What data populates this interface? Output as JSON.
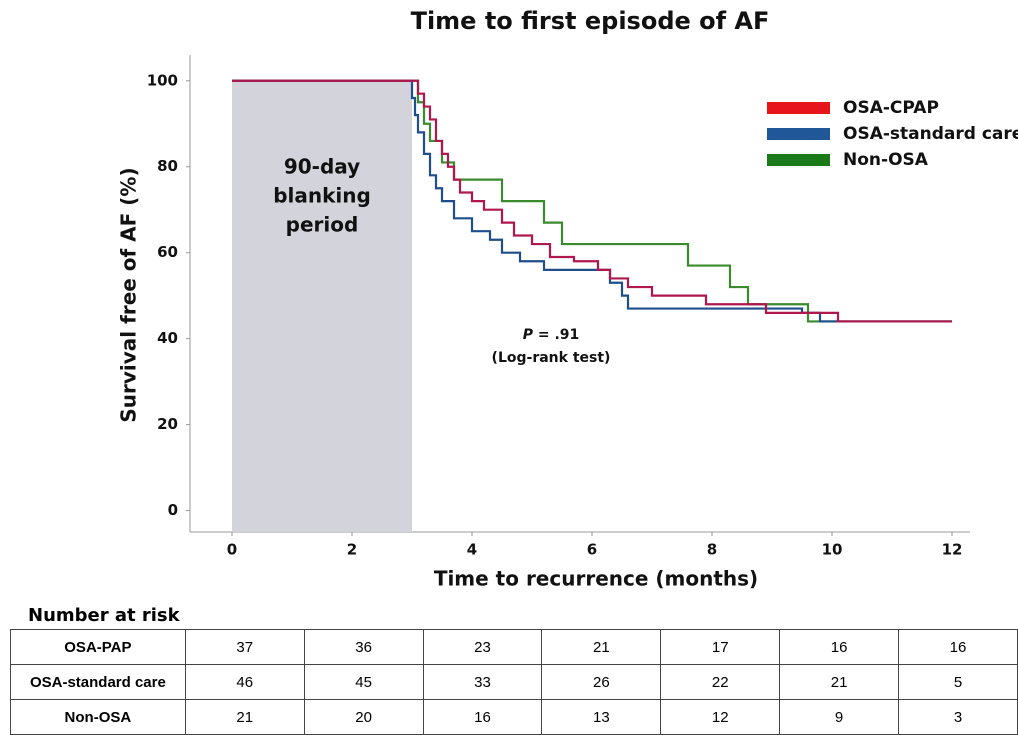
{
  "chart_data": {
    "type": "step",
    "title": "Time to first episode of AF",
    "x_label": "Time to recurrence (months)",
    "y_label": "Survival free of AF (%)",
    "xlim": [
      -0.7,
      12.3
    ],
    "ylim": [
      -5,
      106
    ],
    "xticks": [
      0,
      2,
      4,
      6,
      8,
      10,
      12
    ],
    "yticks": [
      0,
      20,
      40,
      60,
      80,
      100
    ],
    "legend": "upper right",
    "shaded_region": {
      "span": [
        0,
        3
      ],
      "label_lines": [
        "90-day",
        "blanking",
        "period"
      ],
      "color": "#d3d3db"
    },
    "annotation": {
      "symbol": "P",
      "text": "= .91",
      "test": "(Log-rank test)"
    },
    "series": [
      {
        "name": "OSA-CPAP",
        "color": "#b0174f",
        "legend_color": "#e8141c",
        "x": [
          0,
          3.05,
          3.1,
          3.2,
          3.3,
          3.4,
          3.5,
          3.6,
          3.7,
          3.8,
          4.0,
          4.2,
          4.5,
          4.7,
          5.0,
          5.3,
          5.7,
          6.1,
          6.3,
          6.6,
          7.0,
          7.9,
          8.9,
          10.1,
          12
        ],
        "values": [
          100,
          100,
          97,
          94,
          91,
          86,
          83,
          80,
          77,
          74,
          72,
          70,
          67,
          64,
          62,
          59,
          58,
          56,
          54,
          52,
          50,
          48,
          46,
          44,
          44
        ]
      },
      {
        "name": "OSA-standard care",
        "color": "#1f4e8c",
        "legend_color": "#1f5799",
        "x": [
          0,
          3.0,
          3.05,
          3.1,
          3.2,
          3.3,
          3.4,
          3.5,
          3.7,
          4.0,
          4.3,
          4.5,
          4.8,
          5.2,
          6.3,
          6.5,
          6.6,
          9.5,
          9.8,
          12
        ],
        "values": [
          100,
          96,
          92,
          88,
          83,
          78,
          75,
          72,
          68,
          65,
          63,
          60,
          58,
          56,
          53,
          50,
          47,
          46,
          44,
          44
        ]
      },
      {
        "name": "Non-OSA",
        "color": "#3a8a2e",
        "legend_color": "#1a7a1a",
        "x": [
          0,
          3.1,
          3.2,
          3.3,
          3.5,
          3.7,
          4.5,
          5.2,
          5.5,
          7.6,
          8.3,
          8.6,
          9.6,
          12
        ],
        "values": [
          100,
          95,
          90,
          86,
          81,
          77,
          72,
          67,
          62,
          57,
          52,
          48,
          44,
          44
        ]
      }
    ]
  },
  "risk_table": {
    "title": "Number at risk",
    "rows": [
      [
        "OSA-PAP",
        "37",
        "36",
        "23",
        "21",
        "17",
        "16",
        "16"
      ],
      [
        "OSA-standard care",
        "46",
        "45",
        "33",
        "26",
        "22",
        "21",
        "5"
      ],
      [
        "Non-OSA",
        "21",
        "20",
        "16",
        "13",
        "12",
        "9",
        "3"
      ]
    ]
  }
}
